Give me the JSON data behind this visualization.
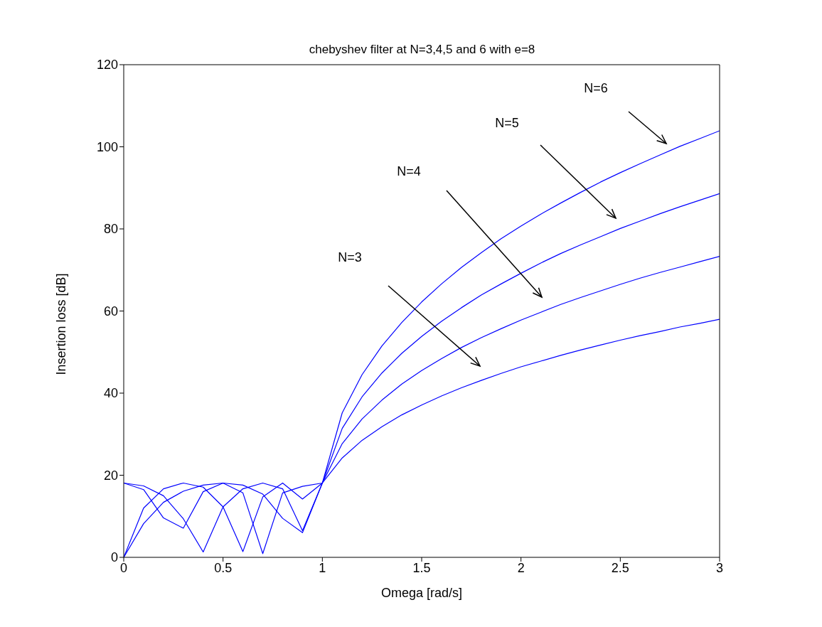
{
  "chart_data": {
    "type": "line",
    "title": "chebyshev filter at N=3,4,5 and 6 with e=8",
    "xlabel": "Omega [rad/s]",
    "ylabel": "Insertion loss [dB]",
    "x": [
      0,
      0.1,
      0.2,
      0.3,
      0.4,
      0.5,
      0.6,
      0.7,
      0.8,
      0.9,
      1,
      1.1,
      1.2,
      1.3,
      1.4,
      1.5,
      1.6,
      1.7,
      1.8,
      1.9,
      2,
      2.1,
      2.2,
      2.3,
      2.4,
      2.5,
      2.6,
      2.7,
      2.8,
      2.9,
      3
    ],
    "series": [
      {
        "color": "#0000ff",
        "values": [
          0,
          8.2,
          13.4,
          16.1,
          17.6,
          18.1,
          17.6,
          15.4,
          9.5,
          6.0,
          18.1,
          24.2,
          28.5,
          31.8,
          34.7,
          37.1,
          39.3,
          41.3,
          43.1,
          44.8,
          46.4,
          47.8,
          49.2,
          50.5,
          51.7,
          52.9,
          54.0,
          55.0,
          56.1,
          57.0,
          58.0
        ]
      },
      {
        "color": "#0000ff",
        "values": [
          18.1,
          17.4,
          15.0,
          9.4,
          1.3,
          12.3,
          16.7,
          18.1,
          16.7,
          6.5,
          18.1,
          27.7,
          33.7,
          38.3,
          42.2,
          45.5,
          48.4,
          51.1,
          53.5,
          55.7,
          57.8,
          59.7,
          61.6,
          63.3,
          64.9,
          66.5,
          68.0,
          69.4,
          70.7,
          72.0,
          73.3
        ]
      },
      {
        "color": "#0000ff",
        "values": [
          0,
          12.0,
          16.7,
          18.1,
          17.1,
          12.3,
          1.4,
          14.7,
          18.1,
          14.2,
          18.1,
          31.4,
          39.1,
          44.9,
          49.7,
          53.8,
          57.5,
          60.8,
          63.9,
          66.6,
          69.2,
          71.7,
          74.0,
          76.1,
          78.1,
          80.1,
          81.9,
          83.7,
          85.4,
          87.0,
          88.6
        ]
      },
      {
        "color": "#0000ff",
        "values": [
          18.1,
          16.5,
          9.6,
          7.1,
          16.0,
          18.1,
          15.7,
          0.9,
          15.7,
          17.3,
          18.1,
          35.2,
          44.5,
          51.5,
          57.2,
          62.2,
          66.6,
          70.6,
          74.2,
          77.6,
          80.7,
          83.6,
          86.3,
          88.9,
          91.4,
          93.7,
          95.9,
          98.0,
          100.1,
          102.0,
          103.9
        ]
      }
    ],
    "xlim": [
      0,
      3
    ],
    "xticks": [
      0,
      0.5,
      1,
      1.5,
      2,
      2.5,
      3
    ],
    "ylim": [
      0,
      120
    ],
    "yticks": [
      0,
      20,
      40,
      60,
      80,
      100,
      120
    ],
    "grid": false,
    "legend": false,
    "marker": "none",
    "line_style": "solid",
    "annotations": [
      "N=3",
      "N=4",
      "N=5",
      "N=6"
    ]
  }
}
